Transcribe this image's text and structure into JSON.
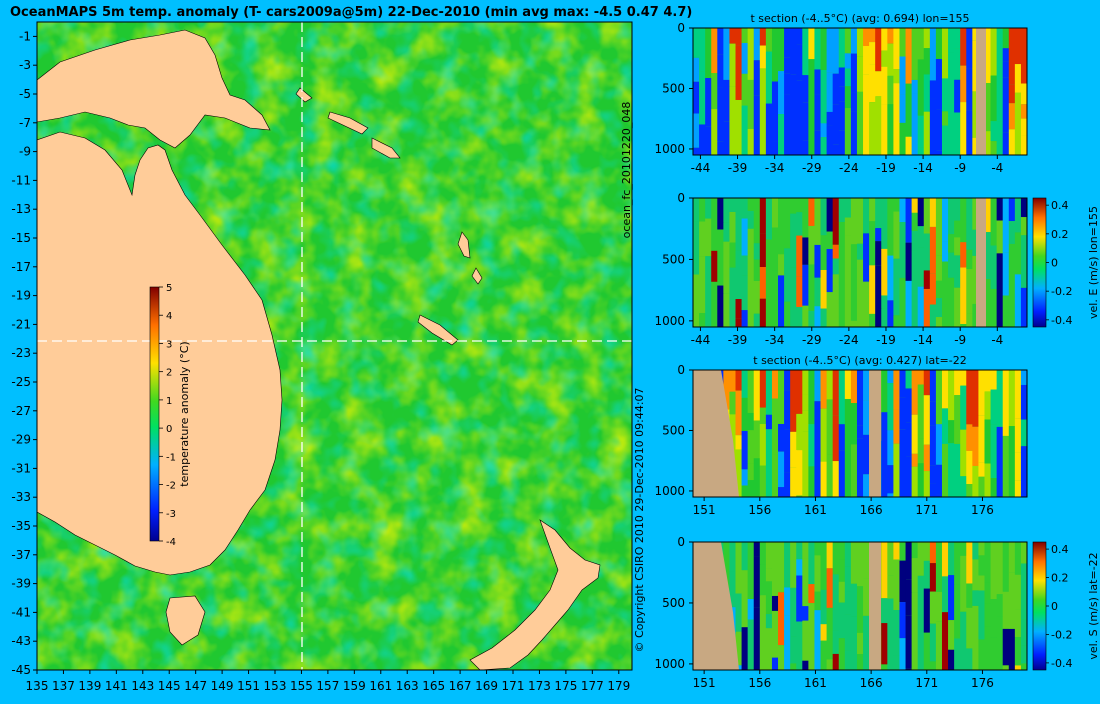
{
  "background": "#00bfff",
  "land_color": "#ffcc99",
  "section_mask_color": "#c8a882",
  "map": {
    "title": "OceanMAPS 5m temp. anomaly (T- cars2009a@5m) 22-Dec-2010 (min avg max: -4.5 0.47 4.7)",
    "x_ticks": [
      "135",
      "137",
      "139",
      "141",
      "143",
      "145",
      "147",
      "149",
      "151",
      "153",
      "155",
      "157",
      "159",
      "161",
      "163",
      "165",
      "167",
      "169",
      "171",
      "173",
      "175",
      "177",
      "179"
    ],
    "y_ticks": [
      "-1",
      "-3",
      "-5",
      "-7",
      "-9",
      "-11",
      "-13",
      "-15",
      "-17",
      "-19",
      "-21",
      "-23",
      "-25",
      "-27",
      "-29",
      "-31",
      "-33",
      "-35",
      "-37",
      "-39",
      "-41",
      "-43",
      "-45"
    ],
    "xlim": [
      135,
      180
    ],
    "ylim": [
      -45,
      0
    ],
    "crosshair": {
      "lon": 155,
      "lat": -22
    },
    "colorbar": {
      "label": "temperature anomaly (°C)",
      "ticks": [
        "5",
        "4",
        "3",
        "2",
        "1",
        "0",
        "-1",
        "-2",
        "-3",
        "-4"
      ],
      "range": [
        -4,
        5
      ]
    }
  },
  "side_label": "ocean_fc_20101220_048",
  "copyright": "© Copyright CSIRO 2010   29-Dec-2010 09:44:07",
  "sections": [
    {
      "id": "lon-t",
      "title": "t section (-4..5°C) (avg: 0.694) lon=155",
      "x_ticks": [
        "-44",
        "-39",
        "-34",
        "-29",
        "-24",
        "-19",
        "-14",
        "-9",
        "-4"
      ],
      "y_ticks": [
        "0",
        "500",
        "1000"
      ],
      "xlim": [
        -45,
        0
      ],
      "seed": 3,
      "kind": "t",
      "has_colorbar": false
    },
    {
      "id": "lon-u",
      "title": "",
      "x_ticks": [
        "-44",
        "-39",
        "-34",
        "-29",
        "-24",
        "-19",
        "-14",
        "-9",
        "-4"
      ],
      "y_ticks": [
        "0",
        "500",
        "1000"
      ],
      "xlim": [
        -45,
        0
      ],
      "seed": 7,
      "kind": "v",
      "has_colorbar": true,
      "cb_label": "vel. E (m/s) lon=155",
      "cb_ticks": [
        "0.4",
        "0.2",
        "0",
        "-0.2",
        "-0.4"
      ]
    },
    {
      "id": "lat-t",
      "title": "t section (-4..5°C) (avg: 0.427) lat=-22",
      "x_ticks": [
        "151",
        "156",
        "161",
        "166",
        "171",
        "176"
      ],
      "y_ticks": [
        "0",
        "500",
        "1000"
      ],
      "xlim": [
        150,
        180
      ],
      "seed": 11,
      "kind": "t",
      "has_colorbar": false
    },
    {
      "id": "lat-v",
      "title": "",
      "x_ticks": [
        "151",
        "156",
        "161",
        "166",
        "171",
        "176"
      ],
      "y_ticks": [
        "0",
        "500",
        "1000"
      ],
      "xlim": [
        150,
        180
      ],
      "seed": 19,
      "kind": "v",
      "has_colorbar": true,
      "cb_label": "vel. S (m/s) lat=-22",
      "cb_ticks": [
        "0.4",
        "0.2",
        "0",
        "-0.2",
        "-0.4"
      ]
    }
  ],
  "chart_data": [
    {
      "type": "heatmap",
      "title": "OceanMAPS 5m temp. anomaly (T- cars2009a@5m) 22-Dec-2010 (min avg max: -4.5 0.47 4.7)",
      "xlim": [
        135,
        180
      ],
      "ylim": [
        -45,
        0
      ],
      "value_range": [
        -4,
        5
      ],
      "stats": {
        "min": -4.5,
        "avg": 0.47,
        "max": 4.7
      }
    },
    {
      "type": "heatmap",
      "title": "t section (-4..5°C) (avg: 0.694) lon=155",
      "xlim": [
        -45,
        0
      ],
      "ylim": [
        1000,
        0
      ],
      "avg": 0.694
    },
    {
      "type": "heatmap",
      "title": "",
      "ylabel": "vel. E (m/s) lon=155",
      "xlim": [
        -45,
        0
      ],
      "ylim": [
        1000,
        0
      ],
      "value_range": [
        -0.4,
        0.4
      ]
    },
    {
      "type": "heatmap",
      "title": "t section (-4..5°C) (avg: 0.427) lat=-22",
      "xlim": [
        150,
        180
      ],
      "ylim": [
        1000,
        0
      ],
      "avg": 0.427
    },
    {
      "type": "heatmap",
      "title": "",
      "ylabel": "vel. S (m/s) lat=-22",
      "xlim": [
        150,
        180
      ],
      "ylim": [
        1000,
        0
      ],
      "value_range": [
        -0.4,
        0.4
      ]
    }
  ]
}
